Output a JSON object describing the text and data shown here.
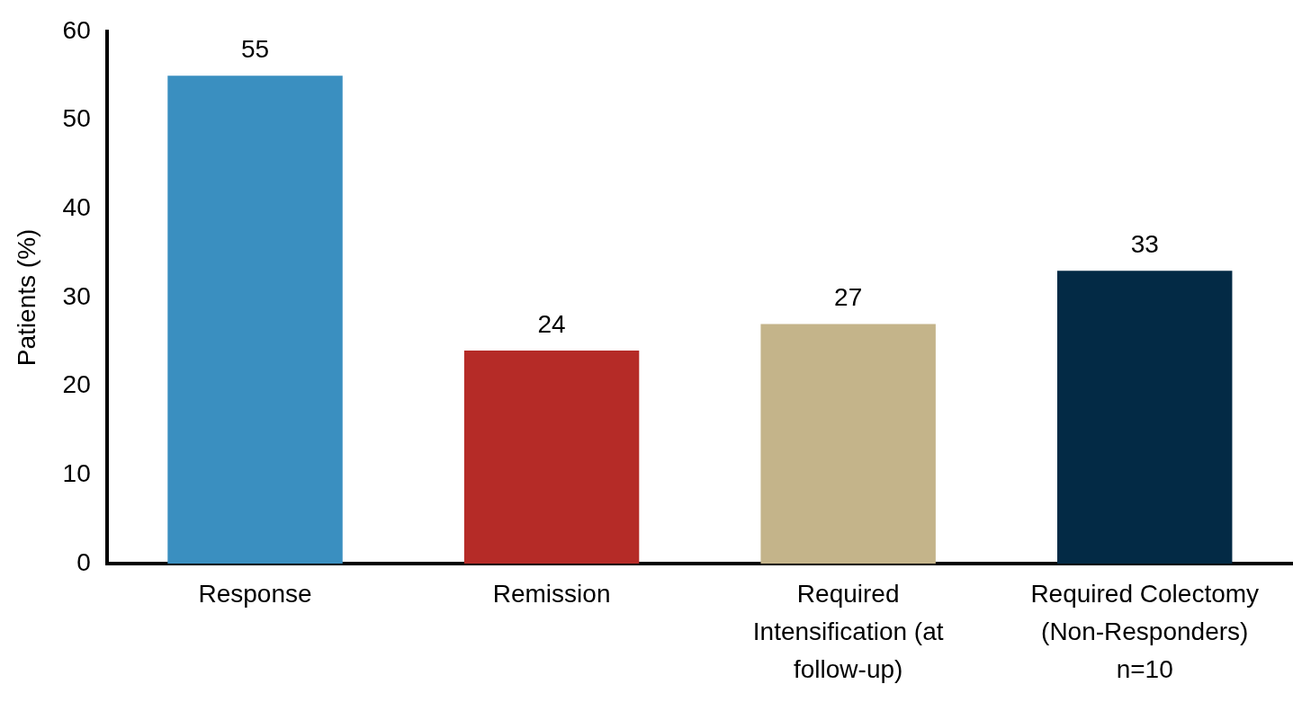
{
  "chart_data": {
    "type": "bar",
    "ylabel": "Patients (%)",
    "categories": [
      "Response",
      "Remission",
      "Required Intensification (at follow-up)",
      "Required Colectomy (Non-Responders) n=10"
    ],
    "values": [
      55,
      24,
      27,
      33
    ],
    "colors": [
      "#3a8fc0",
      "#b52b27",
      "#c4b48a",
      "#032a45"
    ],
    "ylim": [
      0,
      60
    ],
    "yticks": [
      0,
      10,
      20,
      30,
      40,
      50,
      60
    ],
    "grid": false,
    "legend": false,
    "data_labels": true
  }
}
